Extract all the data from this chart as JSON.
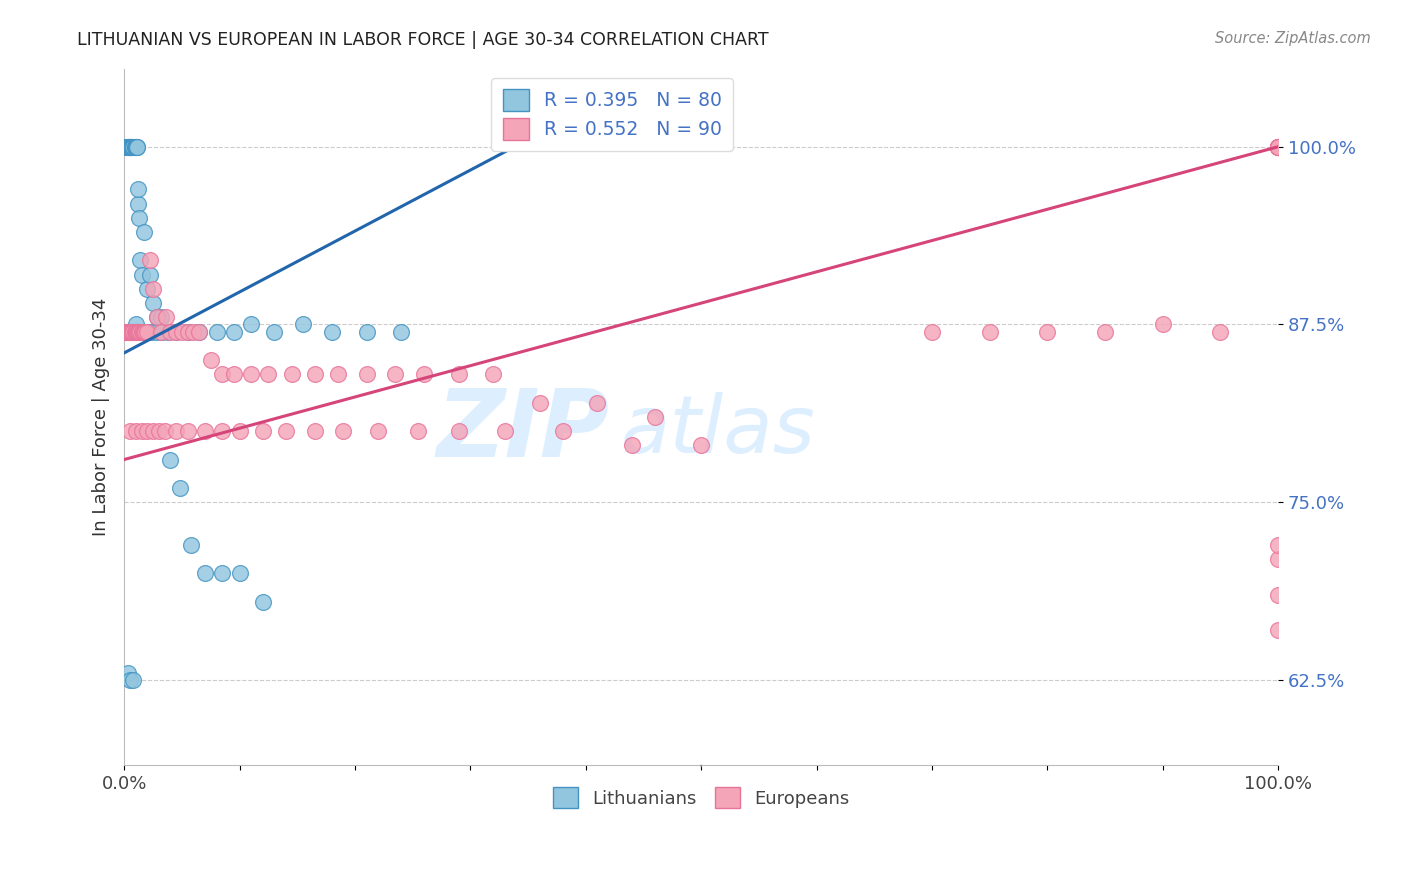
{
  "title": "LITHUANIAN VS EUROPEAN IN LABOR FORCE | AGE 30-34 CORRELATION CHART",
  "source": "Source: ZipAtlas.com",
  "ylabel": "In Labor Force | Age 30-34",
  "blue_R": 0.395,
  "blue_N": 80,
  "pink_R": 0.552,
  "pink_N": 90,
  "blue_color": "#92c5de",
  "blue_edge_color": "#4393c3",
  "blue_line_color": "#2166ac",
  "pink_color": "#f4a5b8",
  "pink_edge_color": "#e8749a",
  "pink_line_color": "#d6457a",
  "watermark_color": "#ddeeff",
  "legend_labels": [
    "Lithuanians",
    "Europeans"
  ],
  "legend_R_N_color": "#4472c4",
  "ytick_color": "#4472c4",
  "blue_x": [
    0.001,
    0.002,
    0.002,
    0.003,
    0.003,
    0.003,
    0.004,
    0.004,
    0.004,
    0.005,
    0.005,
    0.005,
    0.005,
    0.006,
    0.006,
    0.006,
    0.007,
    0.007,
    0.008,
    0.008,
    0.009,
    0.009,
    0.01,
    0.01,
    0.01,
    0.011,
    0.011,
    0.012,
    0.012,
    0.013,
    0.014,
    0.015,
    0.017,
    0.02,
    0.022,
    0.025,
    0.028,
    0.032,
    0.038,
    0.045,
    0.055,
    0.065,
    0.08,
    0.095,
    0.11,
    0.13,
    0.155,
    0.18,
    0.21,
    0.24,
    0.002,
    0.003,
    0.004,
    0.005,
    0.005,
    0.006,
    0.007,
    0.008,
    0.009,
    0.01,
    0.01,
    0.011,
    0.012,
    0.013,
    0.015,
    0.017,
    0.02,
    0.024,
    0.028,
    0.033,
    0.04,
    0.048,
    0.058,
    0.07,
    0.085,
    0.1,
    0.12,
    0.003,
    0.005,
    0.008
  ],
  "blue_y": [
    1.0,
    1.0,
    1.0,
    1.0,
    1.0,
    1.0,
    1.0,
    1.0,
    1.0,
    1.0,
    1.0,
    1.0,
    1.0,
    1.0,
    1.0,
    1.0,
    1.0,
    1.0,
    1.0,
    1.0,
    1.0,
    1.0,
    1.0,
    1.0,
    1.0,
    1.0,
    1.0,
    0.96,
    0.97,
    0.95,
    0.92,
    0.91,
    0.94,
    0.9,
    0.91,
    0.89,
    0.88,
    0.88,
    0.87,
    0.87,
    0.87,
    0.87,
    0.87,
    0.87,
    0.875,
    0.87,
    0.875,
    0.87,
    0.87,
    0.87,
    0.87,
    0.87,
    0.87,
    0.87,
    0.87,
    0.87,
    0.87,
    0.87,
    0.87,
    0.875,
    0.87,
    0.87,
    0.87,
    0.87,
    0.87,
    0.87,
    0.87,
    0.87,
    0.87,
    0.87,
    0.78,
    0.76,
    0.72,
    0.7,
    0.7,
    0.7,
    0.68,
    0.63,
    0.625,
    0.625
  ],
  "pink_x": [
    0.001,
    0.002,
    0.003,
    0.004,
    0.005,
    0.006,
    0.007,
    0.008,
    0.009,
    0.01,
    0.01,
    0.011,
    0.012,
    0.013,
    0.014,
    0.015,
    0.016,
    0.017,
    0.018,
    0.02,
    0.022,
    0.025,
    0.028,
    0.032,
    0.036,
    0.04,
    0.045,
    0.05,
    0.055,
    0.06,
    0.065,
    0.075,
    0.085,
    0.095,
    0.11,
    0.125,
    0.145,
    0.165,
    0.185,
    0.21,
    0.235,
    0.26,
    0.29,
    0.32,
    0.36,
    0.41,
    0.46,
    0.005,
    0.01,
    0.015,
    0.02,
    0.025,
    0.03,
    0.035,
    0.045,
    0.055,
    0.07,
    0.085,
    0.1,
    0.12,
    0.14,
    0.165,
    0.19,
    0.22,
    0.255,
    0.29,
    0.33,
    0.38,
    0.44,
    0.5,
    0.7,
    0.75,
    0.8,
    0.85,
    0.9,
    0.95,
    1.0,
    1.0,
    1.0,
    1.0,
    1.0,
    1.0,
    1.0,
    1.0,
    1.0,
    1.0,
    1.0,
    1.0,
    1.0,
    1.0
  ],
  "pink_y": [
    0.87,
    0.87,
    0.87,
    0.87,
    0.87,
    0.87,
    0.87,
    0.87,
    0.87,
    0.87,
    0.87,
    0.87,
    0.87,
    0.87,
    0.87,
    0.87,
    0.87,
    0.87,
    0.87,
    0.87,
    0.92,
    0.9,
    0.88,
    0.87,
    0.88,
    0.87,
    0.87,
    0.87,
    0.87,
    0.87,
    0.87,
    0.85,
    0.84,
    0.84,
    0.84,
    0.84,
    0.84,
    0.84,
    0.84,
    0.84,
    0.84,
    0.84,
    0.84,
    0.84,
    0.82,
    0.82,
    0.81,
    0.8,
    0.8,
    0.8,
    0.8,
    0.8,
    0.8,
    0.8,
    0.8,
    0.8,
    0.8,
    0.8,
    0.8,
    0.8,
    0.8,
    0.8,
    0.8,
    0.8,
    0.8,
    0.8,
    0.8,
    0.8,
    0.79,
    0.79,
    0.87,
    0.87,
    0.87,
    0.87,
    0.875,
    0.87,
    1.0,
    1.0,
    1.0,
    1.0,
    1.0,
    1.0,
    1.0,
    1.0,
    1.0,
    1.0,
    0.66,
    0.685,
    0.71,
    0.72
  ],
  "blue_line_x0": 0.0,
  "blue_line_x1": 0.35,
  "blue_line_y0": 0.855,
  "blue_line_y1": 1.005,
  "pink_line_x0": 0.0,
  "pink_line_x1": 1.0,
  "pink_line_y0": 0.78,
  "pink_line_y1": 1.0,
  "xlim": [
    0.0,
    1.0
  ],
  "ylim": [
    0.565,
    1.055
  ],
  "yticks": [
    0.625,
    0.75,
    0.875,
    1.0
  ],
  "ytick_labels": [
    "62.5%",
    "75.0%",
    "87.5%",
    "100.0%"
  ],
  "xtick_labels_show": [
    "0.0%",
    "100.0%"
  ],
  "xtick_positions": [
    0.0,
    0.1,
    0.2,
    0.3,
    0.4,
    0.5,
    0.6,
    0.7,
    0.8,
    0.9,
    1.0
  ]
}
